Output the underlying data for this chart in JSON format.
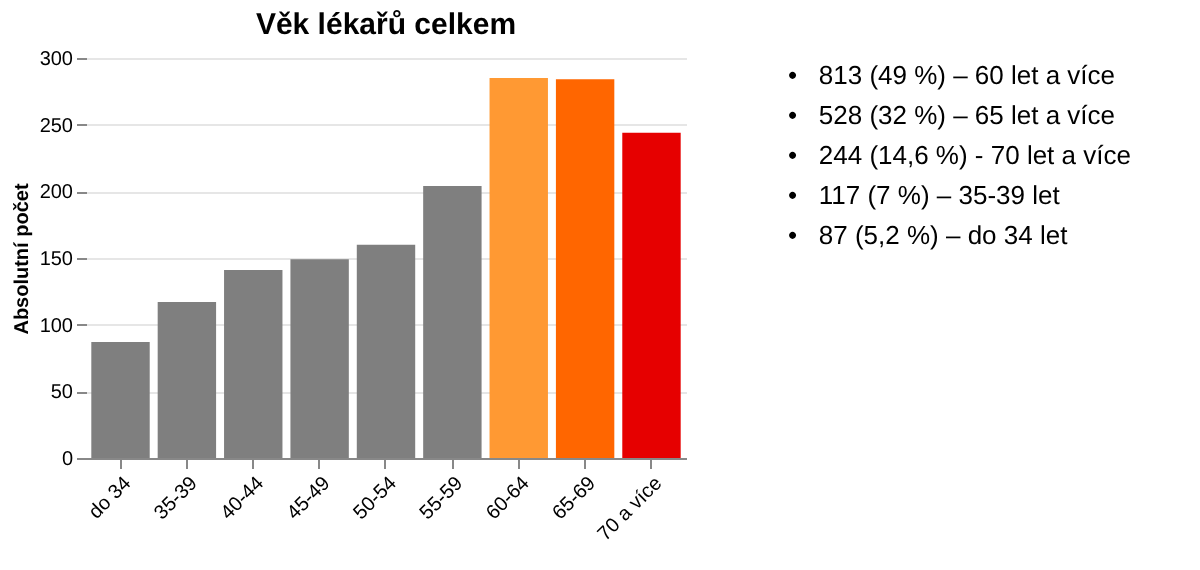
{
  "chart_data": {
    "type": "bar",
    "title": "Věk lékařů celkem",
    "ylabel": "Absolutní počet",
    "categories": [
      "do 34",
      "35-39",
      "40-44",
      "45-49",
      "50-54",
      "55-59",
      "60-64",
      "65-69",
      "70 a více"
    ],
    "values": [
      87,
      117,
      141,
      149,
      160,
      204,
      285,
      284,
      244
    ],
    "colors": [
      "#7f7f7f",
      "#7f7f7f",
      "#7f7f7f",
      "#7f7f7f",
      "#7f7f7f",
      "#7f7f7f",
      "#ff9933",
      "#ff6600",
      "#e60000"
    ],
    "ylim": [
      0,
      300
    ],
    "yticks": [
      0,
      50,
      100,
      150,
      200,
      250,
      300
    ],
    "grid": "y",
    "annotations": [
      "•   813 (49 %) – 60 let a více",
      "•   528 (32 %) – 65 let a více",
      "•   244 (14,6 %) - 70 let a více",
      "•   117 (7 %) – 35-39 let",
      "•   87 (5,2 %) – do 34 let"
    ]
  }
}
